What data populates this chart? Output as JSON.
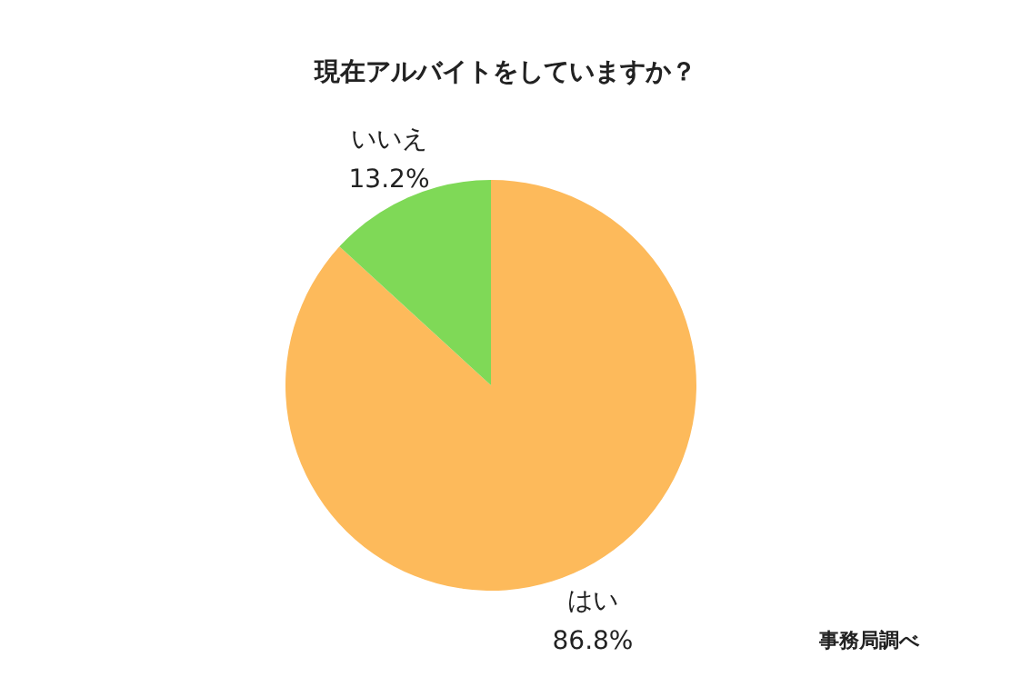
{
  "chart_data": {
    "type": "pie",
    "title": "現在アルバイトをしていますか？",
    "categories": [
      "はい",
      "いいえ"
    ],
    "values": [
      86.8,
      13.2
    ],
    "colors": [
      "#fdba5b",
      "#7fd957"
    ],
    "value_labels": [
      "86.8%",
      "13.2%"
    ],
    "annotations": [
      "事務局調べ"
    ]
  }
}
